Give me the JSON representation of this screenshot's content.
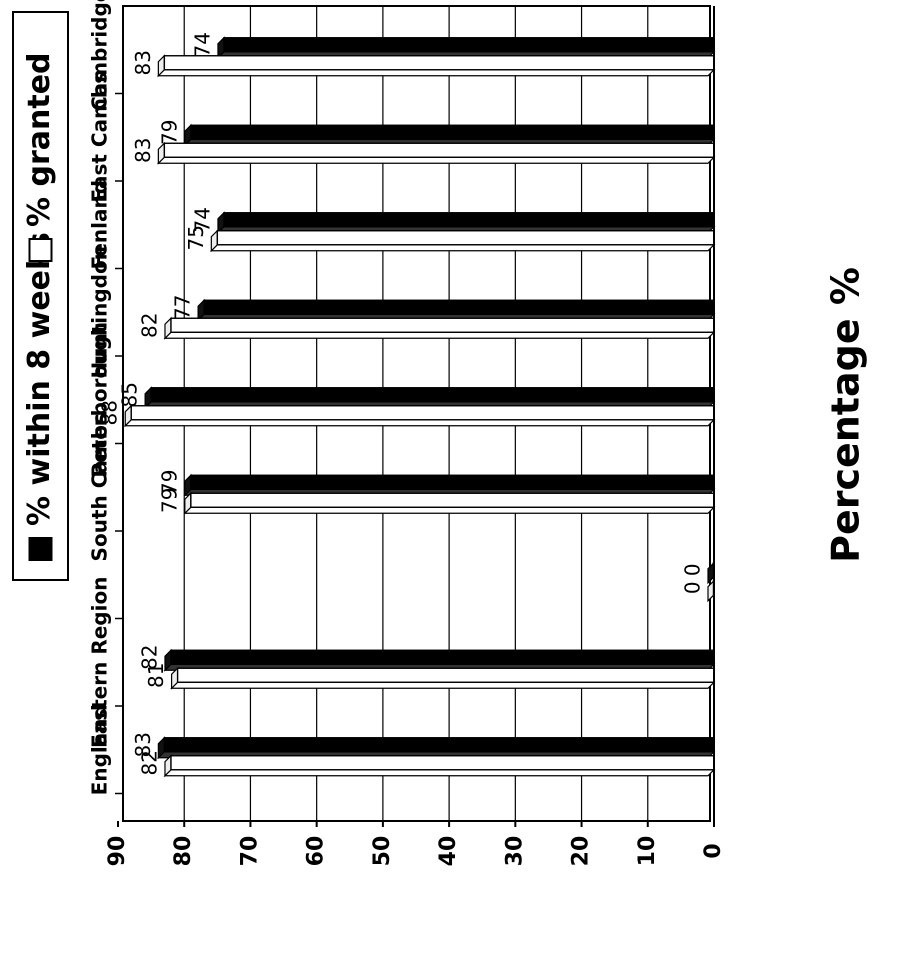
{
  "chart_data": {
    "type": "bar",
    "orientation": "horizontal",
    "rendering": "rotated-180",
    "ylabel": "Percentage %",
    "xlim": [
      0,
      90
    ],
    "x_ticks": [
      "0",
      "10",
      "20",
      "30",
      "40",
      "50",
      "60",
      "70",
      "80",
      "90"
    ],
    "categories": [
      "Cambridge",
      "East Cambs",
      "Fenland",
      "Huntingdon",
      "Peterborough",
      "South Cambs",
      "",
      "Eastern Region",
      "England"
    ],
    "series": [
      {
        "name": "% within 8 weeks",
        "color": "#000000",
        "values": [
          74,
          79,
          74,
          77,
          85,
          79,
          0,
          82,
          83
        ],
        "labels": [
          "74",
          "79",
          "74",
          "77",
          "85",
          "79",
          "0",
          "82",
          "83"
        ]
      },
      {
        "name": "% granted",
        "color": "#ffffff",
        "values": [
          83,
          83,
          75,
          82,
          88,
          79,
          0,
          81,
          82
        ],
        "labels": [
          "83",
          "83",
          "75",
          "82",
          "88",
          "79",
          "0",
          "81",
          "82"
        ]
      }
    ],
    "legend": {
      "position": "left",
      "items": [
        {
          "label": "% within 8 weeks",
          "color": "#000000"
        },
        {
          "label": "% granted",
          "color": "#ffffff"
        }
      ]
    },
    "grid": true
  }
}
